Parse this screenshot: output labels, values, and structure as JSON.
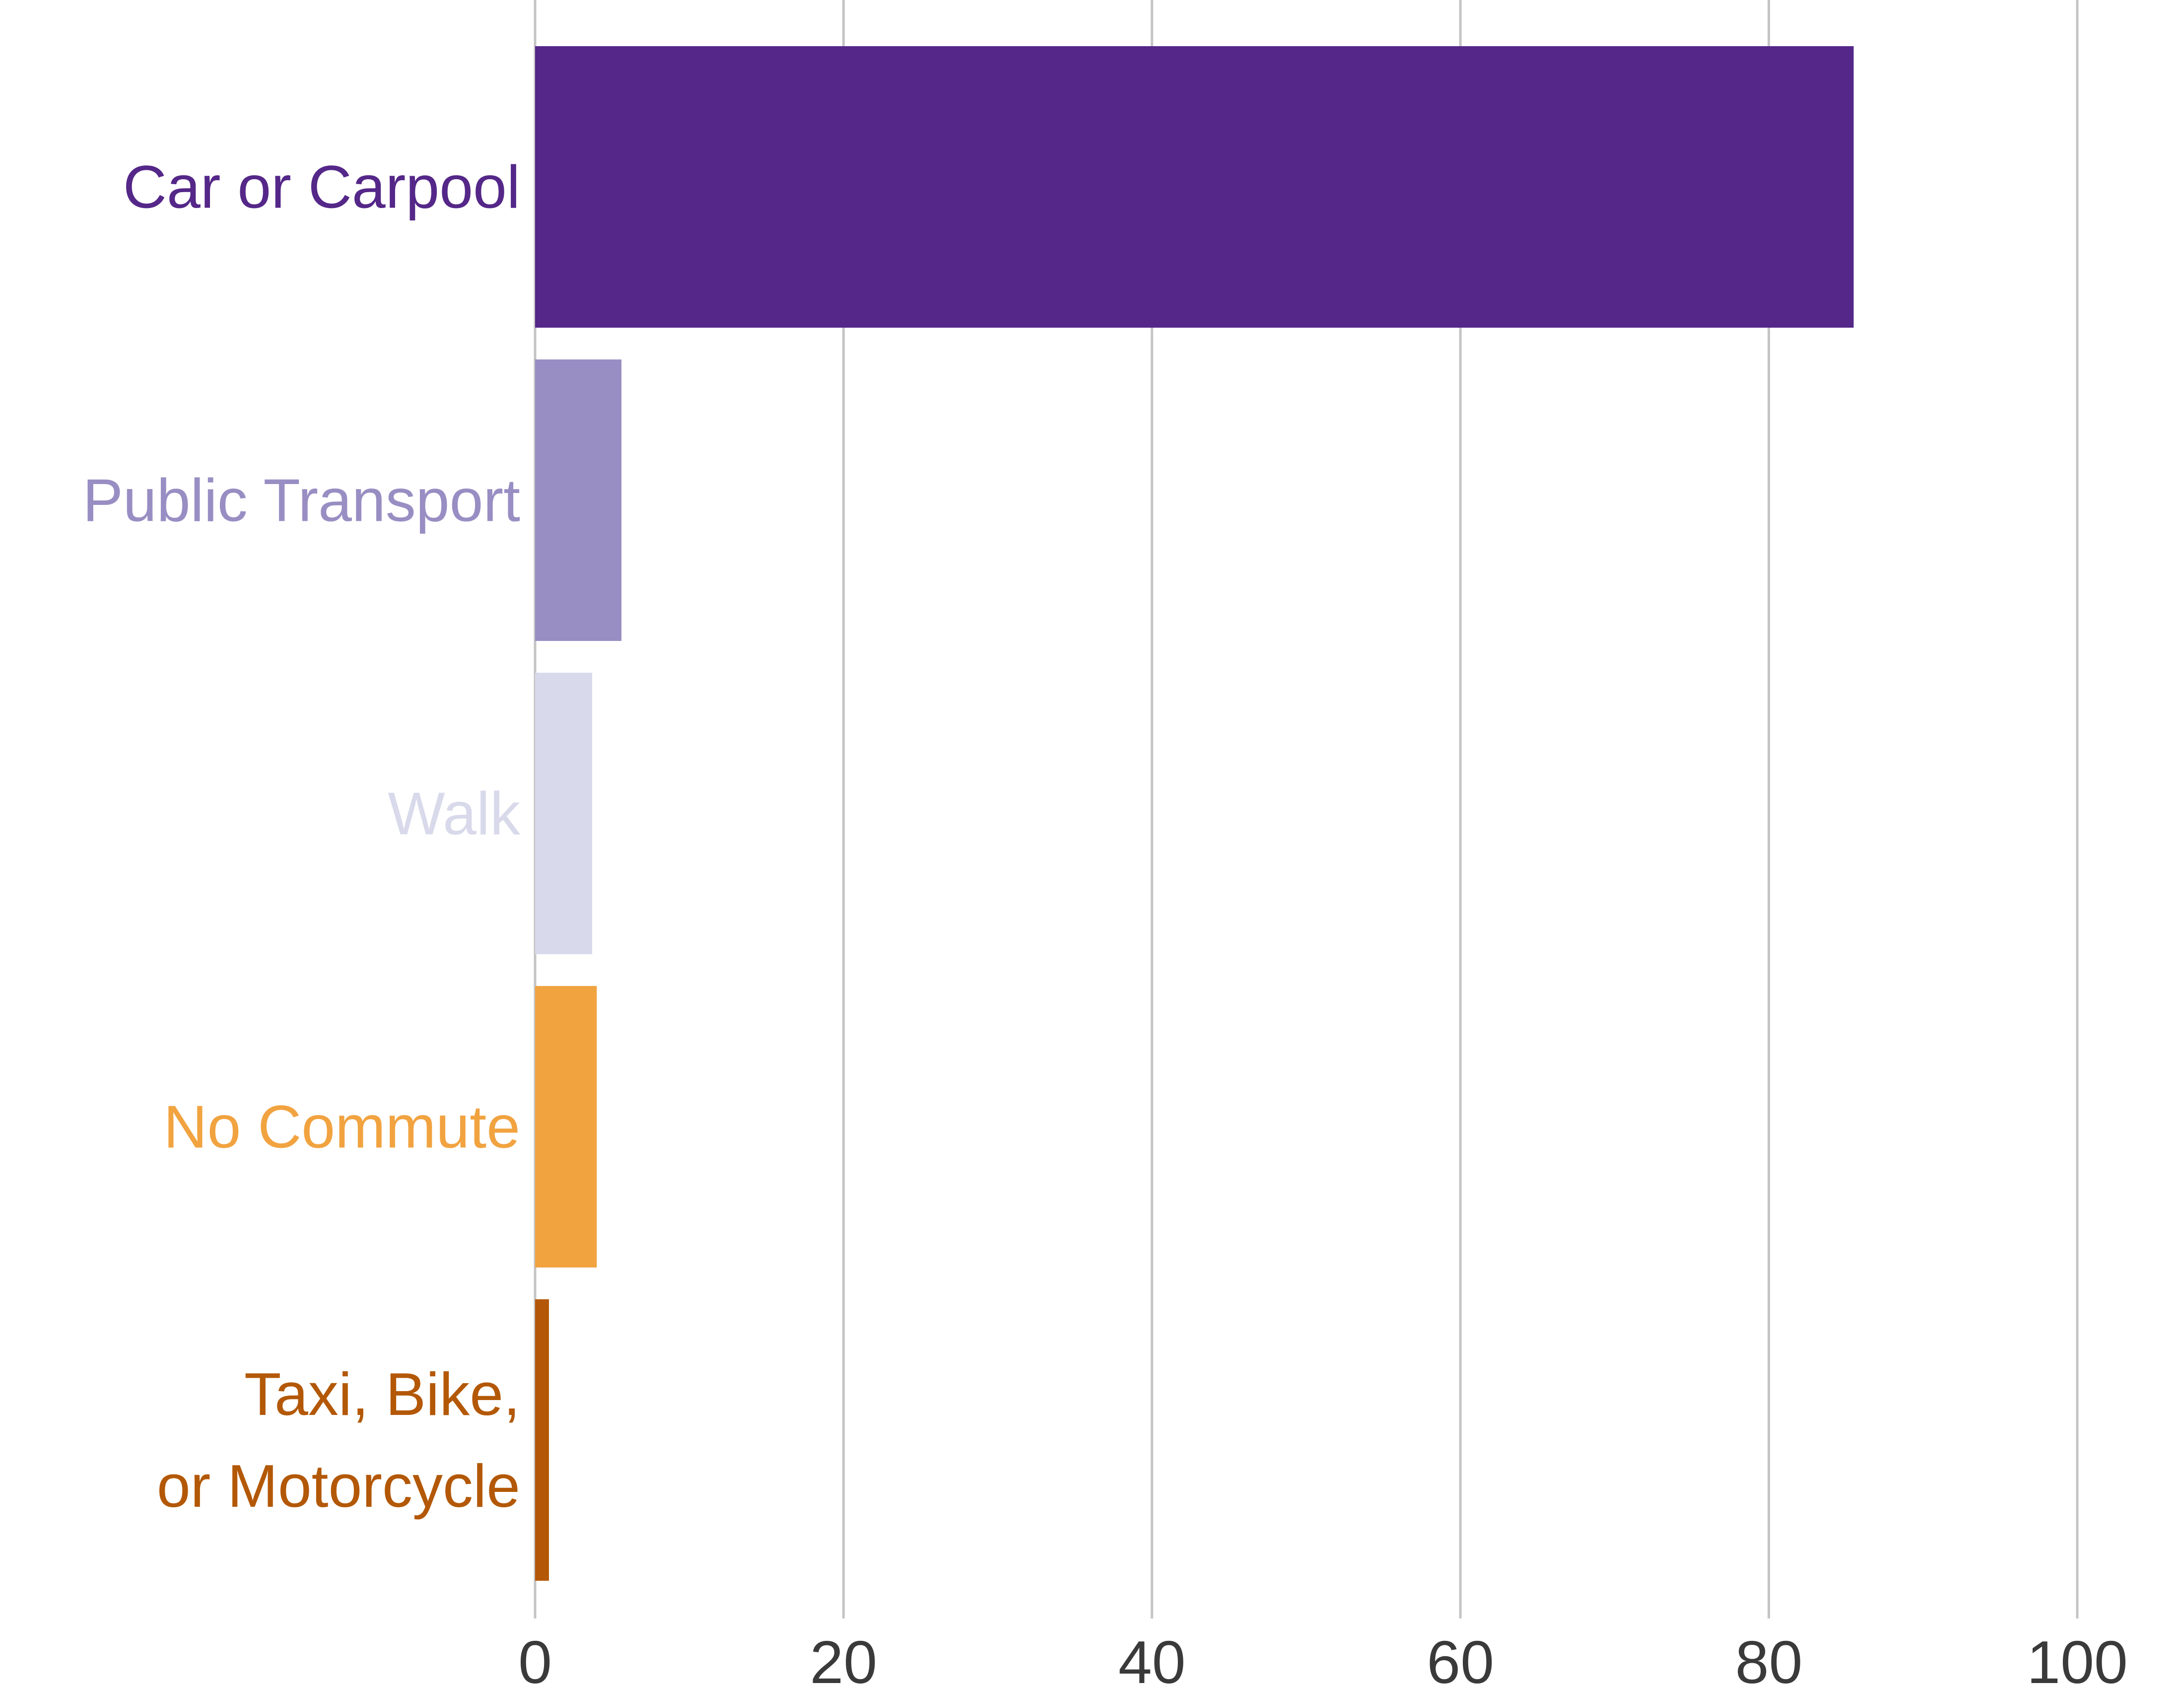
{
  "chart_data": {
    "type": "bar",
    "orientation": "horizontal",
    "categories": [
      [
        "Car or Carpool"
      ],
      [
        "Public Transport"
      ],
      [
        "Walk"
      ],
      [
        "No Commute"
      ],
      [
        "Taxi, Bike,",
        "or Motorcycle"
      ]
    ],
    "values": [
      85.5,
      5.6,
      3.7,
      4.0,
      0.9
    ],
    "colors": [
      "#542788",
      "#998ec3",
      "#d8daeb",
      "#f1a340",
      "#b35806"
    ],
    "xlim": [
      0,
      100
    ],
    "xticks": [
      0,
      20,
      40,
      60,
      80,
      100
    ],
    "grid": "vertical",
    "title": "",
    "xlabel": "",
    "ylabel": ""
  }
}
